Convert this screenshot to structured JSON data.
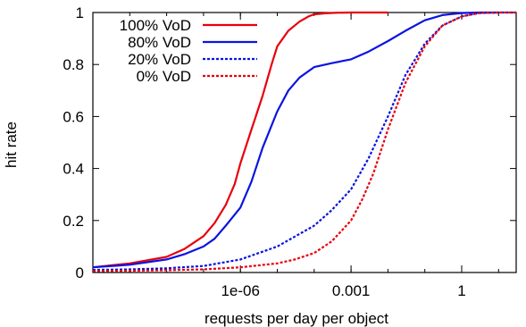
{
  "chart_data": {
    "type": "line",
    "title": "",
    "xlabel": "requests per day per object",
    "ylabel": "hit rate",
    "x_scale": "log",
    "xlim": [
      1e-10,
      30
    ],
    "ylim": [
      0,
      1
    ],
    "x_ticks": [
      {
        "value": 1e-06,
        "label": "1e-06"
      },
      {
        "value": 0.001,
        "label": "0.001"
      },
      {
        "value": 1,
        "label": "1"
      }
    ],
    "y_ticks": [
      {
        "value": 0,
        "label": "0"
      },
      {
        "value": 0.2,
        "label": "0.2"
      },
      {
        "value": 0.4,
        "label": "0.4"
      },
      {
        "value": 0.6,
        "label": "0.6"
      },
      {
        "value": 0.8,
        "label": "0.8"
      },
      {
        "value": 1,
        "label": "1"
      }
    ],
    "grid": false,
    "legend": "top-left",
    "series": [
      {
        "name": "100% VoD",
        "color": "#e8000b",
        "dash": "solid",
        "x": [
          1e-10,
          1e-09,
          1e-08,
          3e-08,
          1e-07,
          2e-07,
          4e-07,
          7e-07,
          1e-06,
          2e-06,
          4e-06,
          7e-06,
          1e-05,
          2e-05,
          4e-05,
          7e-05,
          0.0001,
          0.0002,
          0.0004,
          0.001,
          0.01
        ],
        "y": [
          0.02,
          0.035,
          0.06,
          0.09,
          0.14,
          0.19,
          0.26,
          0.34,
          0.42,
          0.55,
          0.68,
          0.8,
          0.87,
          0.93,
          0.965,
          0.985,
          0.993,
          0.997,
          0.999,
          1.0,
          1.0
        ]
      },
      {
        "name": "80% VoD",
        "color": "#0a14e0",
        "dash": "solid",
        "x": [
          1e-10,
          1e-09,
          1e-08,
          3e-08,
          1e-07,
          2e-07,
          4e-07,
          1e-06,
          2e-06,
          4e-06,
          1e-05,
          2e-05,
          4e-05,
          0.0001,
          0.0003,
          0.001,
          0.003,
          0.01,
          0.03,
          0.1,
          0.3,
          1,
          3,
          10
        ],
        "y": [
          0.02,
          0.03,
          0.05,
          0.07,
          0.1,
          0.13,
          0.18,
          0.25,
          0.35,
          0.48,
          0.62,
          0.7,
          0.75,
          0.79,
          0.805,
          0.82,
          0.85,
          0.89,
          0.93,
          0.97,
          0.99,
          0.998,
          1.0,
          1.0
        ]
      },
      {
        "name": "20% VoD",
        "color": "#0a14e0",
        "dash": "dotted",
        "x": [
          1e-10,
          1e-09,
          1e-08,
          1e-07,
          1e-06,
          1e-05,
          0.0001,
          0.0003,
          0.001,
          0.003,
          0.01,
          0.03,
          0.1,
          0.3,
          1,
          3,
          10,
          30
        ],
        "y": [
          0.01,
          0.012,
          0.016,
          0.025,
          0.05,
          0.1,
          0.18,
          0.24,
          0.32,
          0.44,
          0.6,
          0.76,
          0.88,
          0.95,
          0.985,
          0.998,
          1.0,
          1.0
        ]
      },
      {
        "name": "0% VoD",
        "color": "#e8000b",
        "dash": "dotted",
        "x": [
          1e-10,
          1e-09,
          1e-08,
          1e-07,
          1e-06,
          1e-05,
          3e-05,
          0.0001,
          0.0003,
          0.001,
          0.002,
          0.004,
          0.01,
          0.03,
          0.1,
          0.3,
          1,
          3,
          10,
          30
        ],
        "y": [
          0.005,
          0.007,
          0.009,
          0.012,
          0.02,
          0.035,
          0.05,
          0.075,
          0.12,
          0.2,
          0.28,
          0.38,
          0.55,
          0.73,
          0.87,
          0.95,
          0.985,
          0.998,
          1.0,
          1.0
        ]
      }
    ]
  }
}
